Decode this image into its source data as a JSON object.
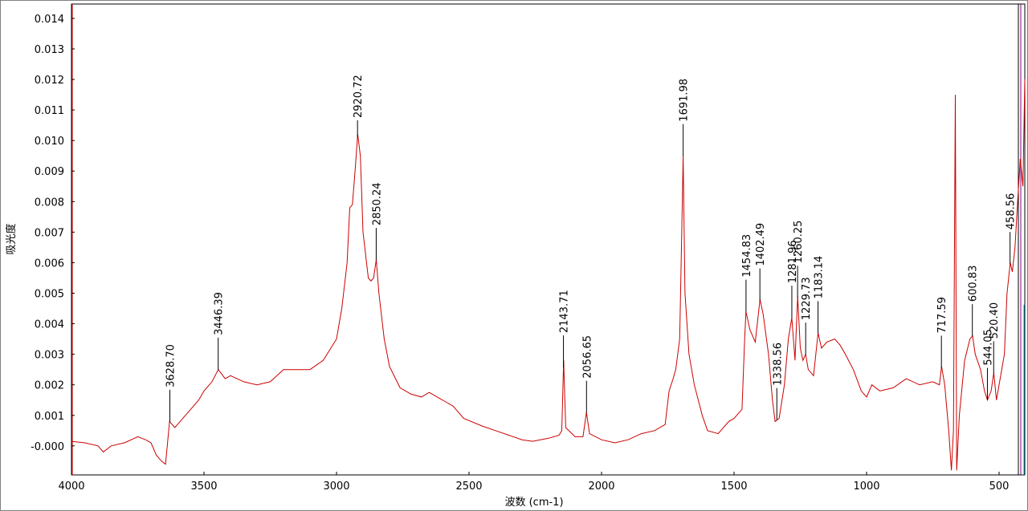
{
  "chart_data": {
    "type": "line",
    "x_label": "波数 (cm-1)",
    "y_label": "吸光度",
    "color": "#cc0000",
    "xlim": [
      4000,
      403
    ],
    "ylim": [
      -0.00095,
      0.01447
    ],
    "xticks": [
      4000,
      3500,
      3000,
      2500,
      2000,
      1500,
      1000,
      500
    ],
    "yticks": [
      {
        "value": 0,
        "label": "-0.000"
      },
      0.001,
      0.002,
      0.003,
      0.004,
      0.005,
      0.006,
      0.007,
      0.008,
      0.009,
      {
        "value": 0.01,
        "label": "0.010"
      },
      0.011,
      0.012,
      0.013,
      0.014
    ],
    "x": [
      4000,
      3950,
      3900,
      3880,
      3850,
      3800,
      3750,
      3720,
      3700,
      3680,
      3660,
      3645,
      3630,
      3610,
      3580,
      3550,
      3520,
      3500,
      3470,
      3446,
      3420,
      3400,
      3350,
      3300,
      3250,
      3200,
      3150,
      3100,
      3050,
      3000,
      2980,
      2960,
      2950,
      2940,
      2930,
      2920,
      2910,
      2900,
      2880,
      2870,
      2860,
      2850,
      2840,
      2820,
      2800,
      2760,
      2720,
      2680,
      2650,
      2620,
      2580,
      2560,
      2520,
      2450,
      2400,
      2350,
      2300,
      2260,
      2200,
      2160,
      2150,
      2143,
      2135,
      2100,
      2070,
      2057,
      2045,
      2000,
      1950,
      1900,
      1850,
      1800,
      1760,
      1745,
      1730,
      1720,
      1705,
      1695,
      1692,
      1685,
      1670,
      1650,
      1620,
      1600,
      1560,
      1520,
      1500,
      1470,
      1460,
      1455,
      1440,
      1420,
      1402,
      1390,
      1370,
      1355,
      1345,
      1330,
      1310,
      1295,
      1282,
      1270,
      1260,
      1250,
      1240,
      1230,
      1220,
      1200,
      1183,
      1170,
      1150,
      1120,
      1100,
      1080,
      1050,
      1020,
      1000,
      980,
      950,
      900,
      850,
      800,
      750,
      725,
      717,
      705,
      690,
      680,
      672,
      665,
      660,
      650,
      630,
      610,
      600,
      590,
      570,
      555,
      544,
      530,
      520,
      510,
      500,
      480,
      470,
      458,
      450,
      440,
      430,
      420,
      410,
      403
    ],
    "values": [
      0.00015,
      0.0001,
      0.0,
      -0.0002,
      0.0,
      0.0001,
      0.0003,
      0.0002,
      0.0001,
      -0.0003,
      -0.0005,
      -0.0006,
      0.0008,
      0.0006,
      0.0009,
      0.0012,
      0.0015,
      0.0018,
      0.0021,
      0.0025,
      0.0022,
      0.0023,
      0.0021,
      0.002,
      0.0021,
      0.0025,
      0.0025,
      0.0025,
      0.0028,
      0.0035,
      0.0045,
      0.006,
      0.0078,
      0.0079,
      0.009,
      0.0102,
      0.0095,
      0.007,
      0.0055,
      0.0054,
      0.0055,
      0.0061,
      0.005,
      0.0035,
      0.0026,
      0.0019,
      0.0017,
      0.0016,
      0.00175,
      0.0016,
      0.0014,
      0.0013,
      0.0009,
      0.00065,
      0.0005,
      0.00035,
      0.0002,
      0.00015,
      0.00025,
      0.00035,
      0.0005,
      0.0028,
      0.0006,
      0.0003,
      0.0003,
      0.0011,
      0.0004,
      0.0002,
      0.0001,
      0.0002,
      0.0004,
      0.0005,
      0.0007,
      0.0018,
      0.0022,
      0.0025,
      0.0035,
      0.008,
      0.0095,
      0.005,
      0.003,
      0.002,
      0.001,
      0.0005,
      0.0004,
      0.0008,
      0.0009,
      0.0012,
      0.0035,
      0.0044,
      0.0038,
      0.0034,
      0.0048,
      0.0043,
      0.003,
      0.0015,
      0.0008,
      0.0009,
      0.002,
      0.0035,
      0.0042,
      0.0028,
      0.0049,
      0.0032,
      0.0028,
      0.003,
      0.0025,
      0.0023,
      0.0037,
      0.0032,
      0.0034,
      0.0035,
      0.0033,
      0.003,
      0.0025,
      0.0018,
      0.0016,
      0.002,
      0.0018,
      0.0019,
      0.0022,
      0.002,
      0.0021,
      0.002,
      0.0026,
      0.002,
      0.0005,
      -0.0008,
      0.0005,
      0.0115,
      -0.0008,
      0.001,
      0.0028,
      0.0035,
      0.0036,
      0.003,
      0.0025,
      0.0018,
      0.0015,
      0.0018,
      0.0024,
      0.0015,
      0.002,
      0.003,
      0.005,
      0.006,
      0.0057,
      0.0065,
      0.008,
      0.0094,
      0.0085,
      0.012
    ],
    "annotations": [
      {
        "value": 3628.7,
        "label": "3628.70"
      },
      {
        "value": 3446.39,
        "label": "3446.39"
      },
      {
        "value": 2920.72,
        "label": "2920.72"
      },
      {
        "value": 2850.24,
        "label": "2850.24"
      },
      {
        "value": 2143.71,
        "label": "2143.71"
      },
      {
        "value": 2056.65,
        "label": "2056.65"
      },
      {
        "value": 1691.98,
        "label": "1691.98"
      },
      {
        "value": 1454.83,
        "label": "1454.83"
      },
      {
        "value": 1402.49,
        "label": "1402.49"
      },
      {
        "value": 1338.56,
        "label": "1338.56"
      },
      {
        "value": 1281.96,
        "label": "1281.96"
      },
      {
        "value": 1260.25,
        "label": "1260.25"
      },
      {
        "value": 1229.73,
        "label": "1229.73"
      },
      {
        "value": 1183.14,
        "label": "1183.14"
      },
      {
        "value": 717.59,
        "label": "717.59"
      },
      {
        "value": 600.83,
        "label": "600.83"
      },
      {
        "value": 544.05,
        "label": "544.05"
      },
      {
        "value": 520.4,
        "label": "520.40"
      },
      {
        "value": 458.56,
        "label": "458.56"
      }
    ]
  }
}
